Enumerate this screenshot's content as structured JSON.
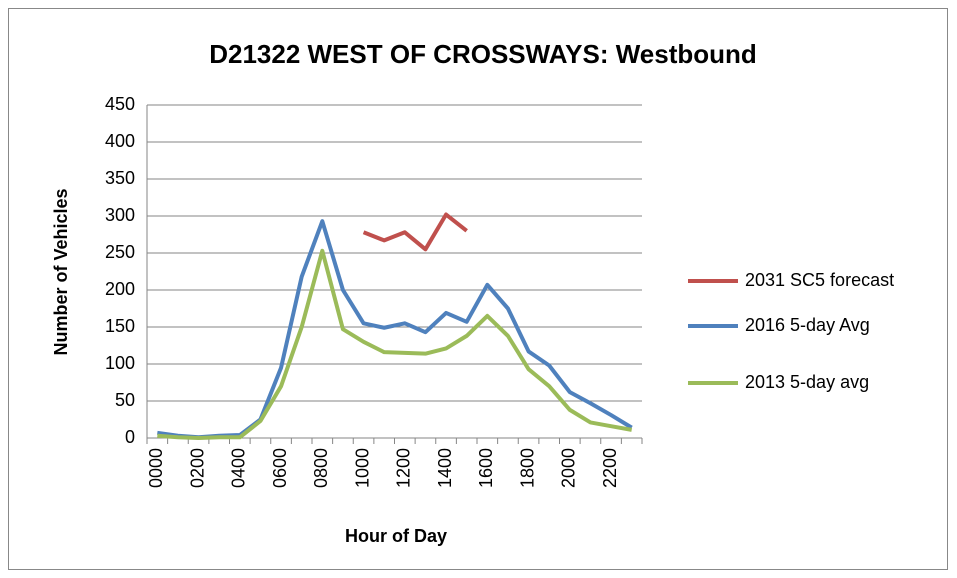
{
  "chart_data": {
    "type": "line",
    "title": "D21322 WEST OF CROSSWAYS: Westbound",
    "x_label": "Hour of Day",
    "y_label": "Number of Vehicles",
    "categories": [
      "0000",
      null,
      "0200",
      null,
      "0400",
      null,
      "0600",
      null,
      "0800",
      null,
      "1000",
      null,
      "1200",
      null,
      "1400",
      null,
      "1600",
      null,
      "1800",
      null,
      "2000",
      null,
      "2200",
      null
    ],
    "series": [
      {
        "name": "2031 SC5 forecast",
        "color": "#c0504d",
        "values": [
          null,
          null,
          null,
          null,
          null,
          null,
          null,
          null,
          null,
          null,
          278,
          267,
          278,
          255,
          302,
          280,
          null,
          null,
          null,
          null,
          null,
          null,
          null,
          null
        ]
      },
      {
        "name": "2016 5-day Avg",
        "color": "#4f81bd",
        "values": [
          7,
          3,
          1,
          3,
          4,
          25,
          95,
          218,
          293,
          200,
          155,
          149,
          155,
          143,
          169,
          157,
          207,
          175,
          117,
          98,
          62,
          47,
          31,
          14
        ]
      },
      {
        "name": "2013 5-day avg",
        "color": "#9bbb59",
        "values": [
          3,
          1,
          0,
          1,
          1,
          23,
          70,
          150,
          253,
          147,
          130,
          116,
          115,
          114,
          121,
          138,
          165,
          138,
          93,
          70,
          38,
          21,
          16,
          11
        ]
      }
    ],
    "ylim": [
      0,
      450
    ],
    "yticks": [
      0,
      50,
      100,
      150,
      200,
      250,
      300,
      350,
      400,
      450
    ],
    "grid": true,
    "legend": "right"
  }
}
